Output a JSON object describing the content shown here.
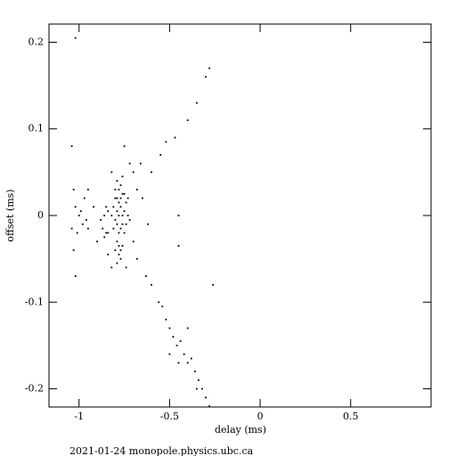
{
  "chart_data": {
    "type": "scatter",
    "xlabel": "delay (ms)",
    "ylabel": "offset (ms)",
    "footer": "2021-01-24 monopole.physics.ubc.ca",
    "color": "#000000",
    "xlim": [
      -1.166,
      0.944
    ],
    "ylim": [
      -0.221,
      0.221
    ],
    "xticks": [
      -1,
      -0.5,
      0,
      0.5
    ],
    "yticks": [
      -0.2,
      -0.1,
      0,
      0.1,
      0.2
    ],
    "series": [
      {
        "x": [
          -0.78,
          -0.77,
          -0.79,
          -0.76,
          -0.8,
          -0.75,
          -0.78,
          -0.77,
          -0.81,
          -0.74,
          -0.79,
          -0.76,
          -0.8,
          -0.77,
          -0.75,
          -0.82,
          -0.73,
          -0.78,
          -0.79,
          -0.76,
          -0.77,
          -0.8,
          -0.74,
          -0.81,
          -0.78,
          -0.75,
          -0.79,
          -0.76,
          -0.73,
          -0.72,
          -0.86,
          -0.85,
          -0.87,
          -0.84,
          -0.86,
          -0.85,
          -0.88,
          -0.84,
          -0.78,
          -0.77,
          -0.79,
          -0.76,
          -0.78,
          -0.8,
          -0.77,
          -0.79,
          -1.0,
          -0.98,
          -1.02,
          -0.96,
          -1.01,
          -0.97,
          -1.03,
          -0.99,
          -1.04,
          -0.95,
          -0.7,
          -0.68,
          -0.72,
          -0.66,
          -0.7,
          -0.68,
          -0.74,
          -0.82,
          -0.84,
          -0.9,
          -0.92,
          -0.65,
          -0.62,
          -0.75,
          -0.95,
          -1.03,
          -1.02,
          -1.04,
          -1.02,
          -0.82,
          -0.63,
          -0.6,
          -0.56,
          -0.54,
          -0.52,
          -0.5,
          -0.48,
          -0.46,
          -0.44,
          -0.42,
          -0.4,
          -0.38,
          -0.36,
          -0.34,
          -0.32,
          -0.3,
          -0.28,
          -0.45,
          -0.5,
          -0.4,
          -0.35,
          -0.26,
          -0.28,
          -0.3,
          -0.35,
          -0.4,
          -0.47,
          -0.52,
          -0.55,
          -0.6,
          -0.45,
          -0.45
        ],
        "y": [
          0.0,
          0.01,
          0.02,
          -0.01,
          -0.005,
          0.005,
          0.03,
          -0.015,
          0.01,
          0.015,
          -0.01,
          0.025,
          0.02,
          0.035,
          -0.02,
          0.0,
          0.0,
          -0.02,
          0.005,
          0.0,
          0.02,
          0.03,
          -0.01,
          -0.015,
          0.015,
          0.025,
          0.04,
          0.045,
          0.02,
          -0.005,
          0.0,
          -0.02,
          -0.015,
          0.005,
          -0.025,
          0.01,
          -0.005,
          -0.02,
          -0.035,
          -0.04,
          -0.03,
          -0.035,
          -0.045,
          -0.04,
          -0.05,
          -0.055,
          0.0,
          -0.01,
          0.01,
          -0.005,
          -0.02,
          0.02,
          0.03,
          0.005,
          -0.015,
          -0.015,
          0.05,
          0.03,
          0.06,
          0.06,
          -0.03,
          -0.05,
          -0.06,
          0.05,
          -0.045,
          -0.03,
          0.01,
          0.02,
          -0.01,
          0.08,
          0.03,
          -0.04,
          -0.07,
          0.08,
          0.205,
          -0.06,
          -0.07,
          -0.08,
          -0.1,
          -0.105,
          -0.12,
          -0.13,
          -0.14,
          -0.15,
          -0.145,
          -0.16,
          -0.17,
          -0.165,
          -0.18,
          -0.19,
          -0.2,
          -0.21,
          -0.22,
          -0.17,
          -0.16,
          -0.13,
          -0.2,
          -0.08,
          0.17,
          0.16,
          0.13,
          0.11,
          0.09,
          0.085,
          0.07,
          0.05,
          0.0,
          -0.035
        ]
      }
    ]
  }
}
